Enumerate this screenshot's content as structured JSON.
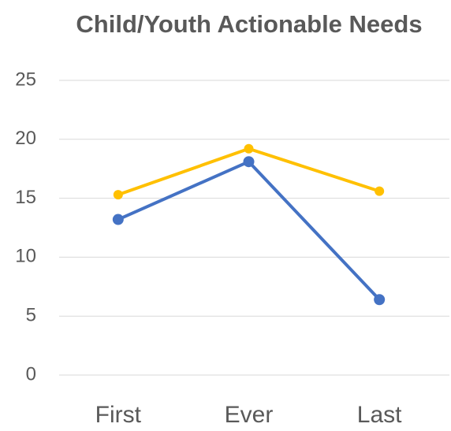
{
  "chart_data": {
    "type": "line",
    "title": "Child/Youth Actionable Needs",
    "categories": [
      "First",
      "Ever",
      "Last"
    ],
    "series": [
      {
        "color": "#ffc000",
        "values": [
          15.3,
          19.2,
          15.6
        ]
      },
      {
        "color": "#4472c4",
        "values": [
          13.2,
          18.1,
          6.4
        ]
      }
    ],
    "ylim": [
      0,
      25
    ],
    "yticks": [
      0,
      5,
      10,
      15,
      20,
      25
    ],
    "grid": true
  }
}
